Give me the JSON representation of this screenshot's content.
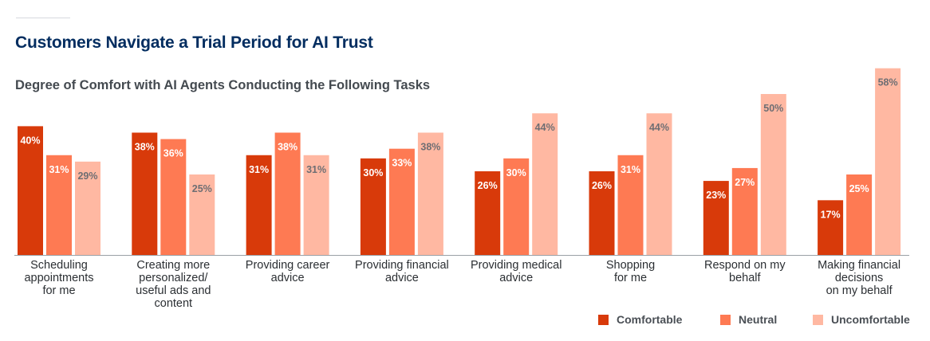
{
  "title": "Customers Navigate a Trial Period for AI Trust",
  "subtitle": "Degree of Comfort with AI Agents Conducting the Following Tasks",
  "colors": {
    "comfortable": "#d83a0a",
    "neutral": "#fe7a53",
    "uncomfortable": "#ffb8a2",
    "axis": "#9aa0a6"
  },
  "chart_data": {
    "type": "bar",
    "title": "Degree of Comfort with AI Agents Conducting the Following Tasks",
    "xlabel": "",
    "ylabel": "",
    "ylim": [
      0,
      60
    ],
    "grid": false,
    "legend_position": "bottom-right",
    "categories": [
      [
        "Scheduling",
        "appointments",
        "for me"
      ],
      [
        "Creating more",
        "personalized/",
        "useful ads and",
        "content"
      ],
      [
        "Providing career",
        "advice"
      ],
      [
        "Providing financial",
        "advice"
      ],
      [
        "Providing medical",
        "advice"
      ],
      [
        "Shopping",
        "for me"
      ],
      [
        "Respond on my",
        "behalf"
      ],
      [
        "Making financial",
        "decisions",
        "on my behalf"
      ]
    ],
    "series": [
      {
        "name": "Comfortable",
        "values": [
          40,
          38,
          31,
          30,
          26,
          26,
          23,
          17
        ]
      },
      {
        "name": "Neutral",
        "values": [
          31,
          36,
          38,
          33,
          30,
          31,
          27,
          25
        ]
      },
      {
        "name": "Uncomfortable",
        "values": [
          29,
          25,
          31,
          38,
          44,
          44,
          50,
          58
        ]
      }
    ],
    "value_suffix": "%"
  }
}
